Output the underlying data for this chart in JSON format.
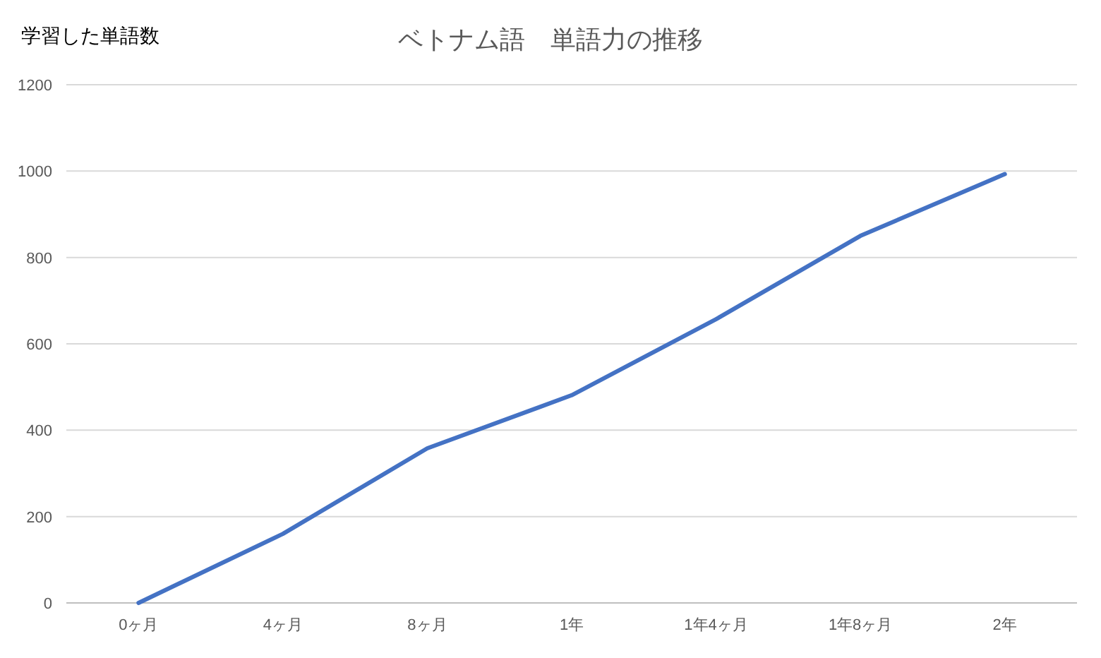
{
  "chart_data": {
    "type": "line",
    "title": "ベトナム語　単語力の推移",
    "ylabel": "学習した単語数",
    "categories": [
      "0ヶ月",
      "4ヶ月",
      "8ヶ月",
      "1年",
      "1年4ヶ月",
      "1年8ヶ月",
      "2年"
    ],
    "series": [
      {
        "color": "#4472c4",
        "values": [
          0,
          160,
          358,
          481,
          657,
          850,
          993
        ]
      }
    ],
    "ylim": [
      0,
      1200
    ],
    "yticks": [
      0,
      200,
      400,
      600,
      800,
      1000,
      1200
    ],
    "grid": "y",
    "marker": "none",
    "line_style": "solid"
  }
}
